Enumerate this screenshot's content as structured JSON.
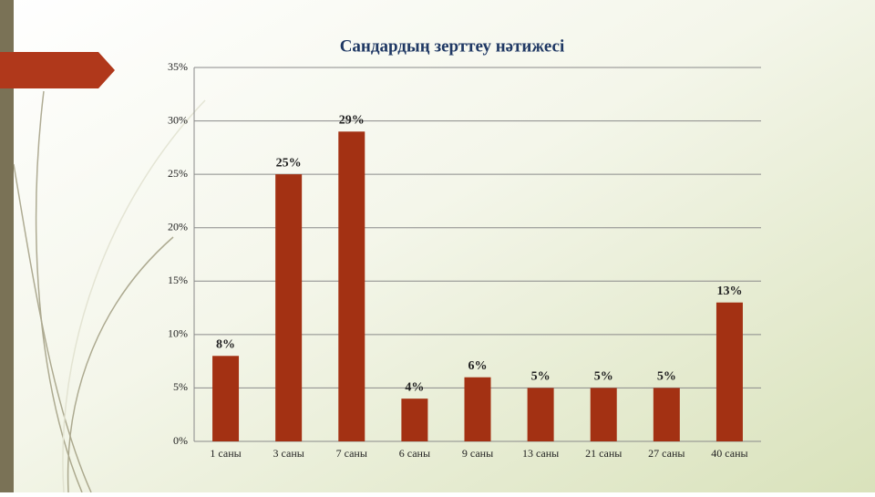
{
  "chart_data": {
    "type": "bar",
    "title": "Сандардың зерттеу нәтижесі",
    "categories": [
      "1 саны",
      "3 саны",
      "7 саны",
      "6 саны",
      "9 саны",
      "13 саны",
      "21 саны",
      "27 саны",
      "40 саны"
    ],
    "values": [
      8,
      25,
      29,
      4,
      6,
      5,
      5,
      5,
      13
    ],
    "value_labels": [
      "8%",
      "25%",
      "29%",
      "4%",
      "6%",
      "5%",
      "5%",
      "5%",
      "13%"
    ],
    "color": "#a33113",
    "ylim": [
      0,
      35
    ],
    "yticks": [
      {
        "value": 0,
        "label": "0%"
      },
      {
        "value": 5,
        "label": "5%"
      },
      {
        "value": 10,
        "label": "10%"
      },
      {
        "value": 15,
        "label": "15%"
      },
      {
        "value": 20,
        "label": "20%"
      },
      {
        "value": 25,
        "label": "25%"
      },
      {
        "value": 30,
        "label": "30%"
      },
      {
        "value": 35,
        "label": "35%"
      }
    ],
    "grid": true
  }
}
